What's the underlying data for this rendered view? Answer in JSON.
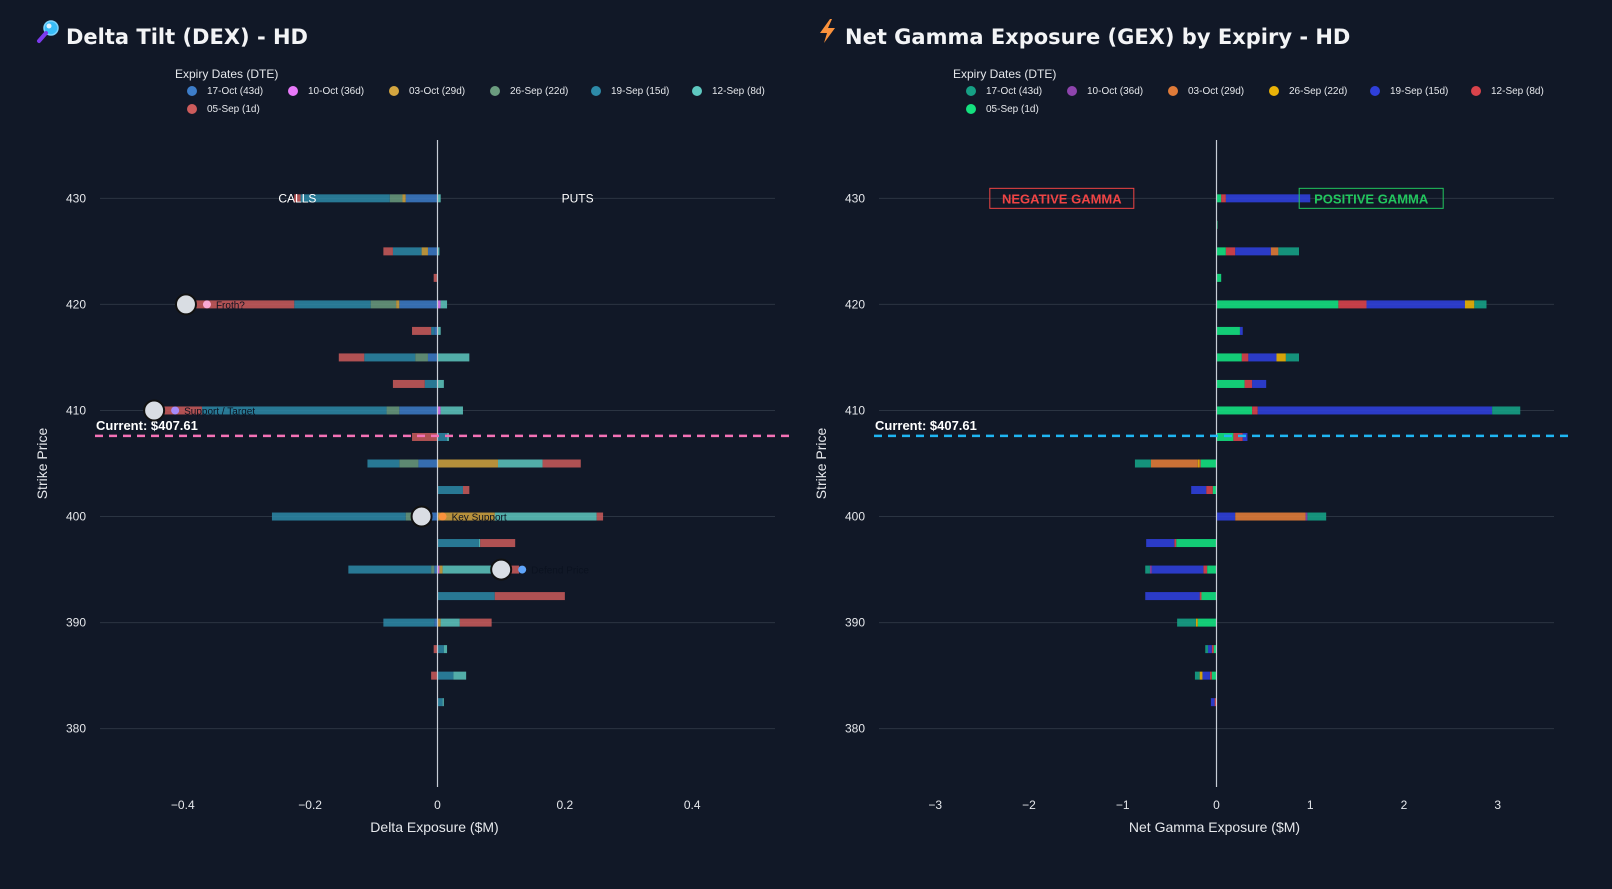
{
  "colors": {
    "background": "#111827",
    "grid": "#2b3442",
    "zero_line": "#c7cdd6",
    "dex_current_line": "#f472b6",
    "gex_current_line": "#1fb5f2",
    "negative_gamma": "#ef4444",
    "positive_gamma": "#22c55e"
  },
  "chart_data": [
    {
      "id": "dex",
      "type": "bar",
      "orientation": "horizontal",
      "barmode": "relative",
      "title": "Delta Tilt (DEX) - HD",
      "title_icon": "magnifier-icon",
      "xlabel": "Delta Exposure ($M)",
      "ylabel": "Strike Price",
      "xlim": [
        -0.53,
        0.53
      ],
      "ylim": [
        374.5,
        435.5
      ],
      "xticks": [
        -0.4,
        -0.2,
        0,
        0.2,
        0.4
      ],
      "xtick_labels": [
        "−0.4",
        "−0.2",
        "0",
        "0.2",
        "0.4"
      ],
      "yticks": [
        380,
        390,
        400,
        410,
        420,
        430
      ],
      "ytick_labels": [
        "380",
        "390",
        "400",
        "410",
        "420",
        "430"
      ],
      "grid": true,
      "legend_title": "Expiry Dates (DTE)",
      "legend_position": "top",
      "strikes": [
        430,
        425,
        422.5,
        420,
        417.5,
        415,
        412.5,
        410,
        407.5,
        405,
        402.5,
        400,
        397.5,
        395,
        392.5,
        390,
        387.5,
        385,
        382.5
      ],
      "series": [
        {
          "name": "17-Oct (43d)",
          "color": "#3d7dc9",
          "values": [
            -0.05,
            -0.015,
            0,
            -0.06,
            -0.005,
            -0.015,
            0,
            -0.06,
            0,
            -0.03,
            0,
            -0.03,
            0,
            -0.005,
            0,
            -0.005,
            0,
            0,
            0
          ]
        },
        {
          "name": "10-Oct (36d)",
          "color": "#e879f9",
          "values": [
            0,
            0,
            0,
            0.005,
            0,
            0,
            0,
            0.005,
            0,
            0,
            0,
            0,
            0,
            0.003,
            0,
            0,
            0,
            0,
            0
          ]
        },
        {
          "name": "03-Oct (29d)",
          "color": "#d4a640",
          "values": [
            -0.005,
            -0.01,
            0,
            -0.005,
            0,
            0,
            0,
            0,
            0,
            0.095,
            0,
            0.09,
            0,
            0.005,
            0,
            0.005,
            0,
            0,
            0
          ]
        },
        {
          "name": "26-Sep (22d)",
          "color": "#6b9c7f",
          "values": [
            -0.02,
            0,
            0,
            -0.04,
            0,
            -0.02,
            0,
            -0.02,
            0,
            -0.03,
            0,
            -0.02,
            0,
            -0.005,
            0,
            0,
            0,
            0,
            0
          ]
        },
        {
          "name": "19-Sep (15d)",
          "color": "#2d8aa8",
          "values": [
            -0.14,
            -0.045,
            0,
            -0.12,
            -0.005,
            -0.08,
            -0.02,
            -0.29,
            0.015,
            -0.05,
            0.04,
            -0.21,
            0.065,
            -0.13,
            0.09,
            -0.08,
            0.01,
            0.025,
            0.008
          ]
        },
        {
          "name": "12-Sep (8d)",
          "color": "#5ec8c0",
          "values": [
            0.005,
            0.003,
            0,
            0.01,
            0.005,
            0.05,
            0.01,
            0.035,
            0.003,
            0.07,
            0,
            0.16,
            0.002,
            0.08,
            0,
            0.03,
            0.005,
            0.02,
            0.002
          ]
        },
        {
          "name": "05-Sep (1d)",
          "color": "#cd5c5c",
          "values": [
            -0.01,
            -0.015,
            -0.006,
            -0.16,
            -0.03,
            -0.04,
            -0.05,
            -0.06,
            -0.04,
            0.06,
            0.01,
            0.01,
            0.055,
            0.04,
            0.11,
            0.05,
            -0.006,
            -0.01,
            0
          ]
        }
      ],
      "current_price": {
        "value": 407.61,
        "label": "Current: $407.61"
      },
      "annotations": [
        {
          "text": "CALLS",
          "x": -0.22,
          "y": 430
        },
        {
          "text": "PUTS",
          "x": 0.22,
          "y": 430
        }
      ],
      "markers": [
        {
          "label": "Froth?",
          "x": -0.395,
          "y": 420,
          "icon": "sparkle-icon",
          "icon_color": "#f9a8d4"
        },
        {
          "label": "Support / Target",
          "x": -0.445,
          "y": 410,
          "icon": "target-icon",
          "icon_color": "#a78bfa"
        },
        {
          "label": "Key Support",
          "x": -0.025,
          "y": 400,
          "icon": "house-icon",
          "icon_color": "#fb923c"
        },
        {
          "label": "Defend Price",
          "x": 0.1,
          "y": 395,
          "icon": "shield-icon",
          "icon_color": "#60a5fa"
        }
      ]
    },
    {
      "id": "gex",
      "type": "bar",
      "orientation": "horizontal",
      "barmode": "relative",
      "title": "Net Gamma Exposure (GEX) by Expiry - HD",
      "title_icon": "lightning-icon",
      "xlabel": "Net Gamma Exposure ($M)",
      "ylabel": "Strike Price",
      "xlim": [
        -3.6,
        3.6
      ],
      "ylim": [
        374.5,
        435.5
      ],
      "xticks": [
        -3,
        -2,
        -1,
        0,
        1,
        2,
        3
      ],
      "xtick_labels": [
        "−3",
        "−2",
        "−1",
        "0",
        "1",
        "2",
        "3"
      ],
      "yticks": [
        380,
        390,
        400,
        410,
        420,
        430
      ],
      "ytick_labels": [
        "380",
        "390",
        "400",
        "410",
        "420",
        "430"
      ],
      "grid": true,
      "legend_title": "Expiry Dates (DTE)",
      "legend_position": "top",
      "strikes": [
        430,
        427.5,
        425,
        422.5,
        420,
        417.5,
        415,
        412.5,
        410,
        407.5,
        405,
        402.5,
        400,
        397.5,
        395,
        392.5,
        390,
        387.5,
        385,
        382.5
      ],
      "series": [
        {
          "name": "05-Sep (1d)",
          "color": "#14e07f",
          "values": [
            0.05,
            0.01,
            0.1,
            0.05,
            1.3,
            0.25,
            0.27,
            0.3,
            0.38,
            0.18,
            -0.17,
            -0.04,
            0,
            -0.43,
            -0.1,
            -0.16,
            -0.2,
            -0.03,
            -0.05,
            0
          ]
        },
        {
          "name": "12-Sep (8d)",
          "color": "#d9434b",
          "values": [
            0.05,
            0,
            0.1,
            0,
            0.3,
            0,
            0.07,
            0.08,
            0.06,
            0.1,
            -0.01,
            -0.07,
            0,
            -0.02,
            -0.04,
            -0.02,
            0,
            -0.02,
            -0.02,
            -0.02
          ]
        },
        {
          "name": "19-Sep (15d)",
          "color": "#2f3fd9",
          "values": [
            0.9,
            0,
            0.38,
            0,
            1.05,
            0.03,
            0.3,
            0.15,
            2.5,
            0.05,
            0,
            -0.16,
            0.2,
            -0.3,
            -0.55,
            -0.58,
            0,
            -0.04,
            -0.08,
            -0.04
          ]
        },
        {
          "name": "26-Sep (22d)",
          "color": "#eab308",
          "values": [
            0,
            0,
            0,
            0,
            0.1,
            0,
            0.1,
            0,
            0,
            0,
            -0.02,
            0,
            0,
            0,
            0,
            0,
            -0.02,
            0,
            -0.03,
            0
          ]
        },
        {
          "name": "03-Oct (29d)",
          "color": "#e07b39",
          "values": [
            0,
            0,
            0.08,
            0,
            0,
            0,
            0,
            0,
            0,
            0,
            -0.5,
            0,
            0.75,
            0,
            0,
            0,
            0,
            0,
            0,
            0
          ]
        },
        {
          "name": "10-Oct (36d)",
          "color": "#8e44ad",
          "values": [
            0,
            0,
            0,
            0,
            0,
            0,
            0,
            0,
            0,
            0,
            0,
            0,
            0.02,
            0,
            -0.02,
            0,
            0,
            0,
            0,
            0
          ]
        },
        {
          "name": "17-Oct (43d)",
          "color": "#16a085",
          "values": [
            0,
            0,
            0.22,
            0,
            0.13,
            0,
            0.14,
            0,
            0.3,
            0,
            -0.17,
            0,
            0.2,
            0,
            -0.05,
            0,
            -0.2,
            -0.03,
            -0.05,
            0
          ]
        }
      ],
      "legend_order": [
        "17-Oct (43d)",
        "10-Oct (36d)",
        "03-Oct (29d)",
        "26-Sep (22d)",
        "19-Sep (15d)",
        "12-Sep (8d)",
        "05-Sep (1d)"
      ],
      "current_price": {
        "value": 407.61,
        "label": "Current: $407.61"
      },
      "annotations": [
        {
          "text": "NEGATIVE GAMMA",
          "x": -1.65,
          "y": 430,
          "color": "#ef4444"
        },
        {
          "text": "POSITIVE GAMMA",
          "x": 1.65,
          "y": 430,
          "color": "#22c55e"
        }
      ]
    }
  ]
}
